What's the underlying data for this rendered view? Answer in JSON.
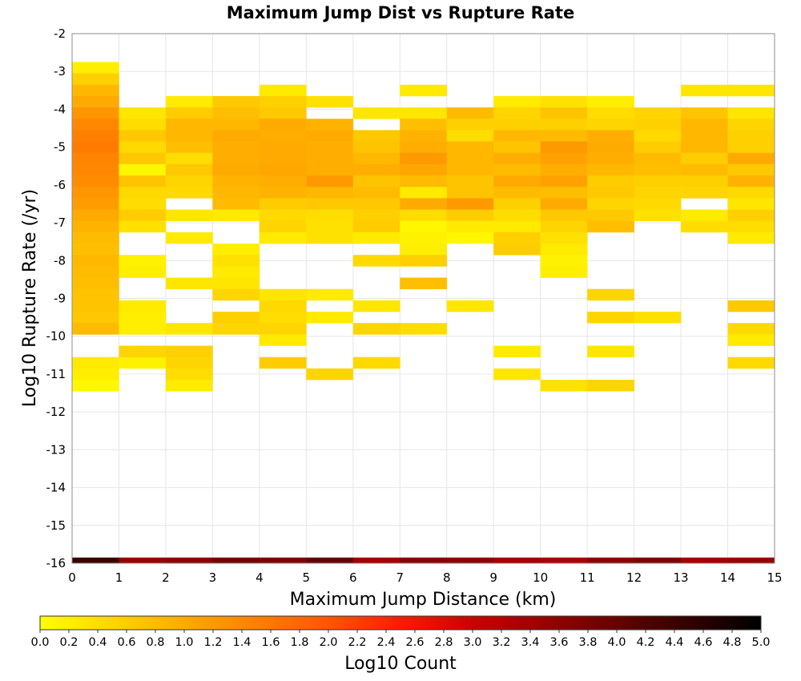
{
  "chart_data": {
    "type": "heatmap",
    "title": "Maximum Jump Dist vs Rupture Rate",
    "xlabel": "Maximum Jump Distance (km)",
    "ylabel": "Log10 Rupture Rate (/yr)",
    "xlim": [
      0,
      15
    ],
    "ylim": [
      -16,
      -2
    ],
    "x_ticks": [
      "0",
      "1",
      "2",
      "3",
      "4",
      "5",
      "6",
      "7",
      "8",
      "9",
      "10",
      "11",
      "12",
      "13",
      "14",
      "15"
    ],
    "y_ticks": [
      "-2",
      "-3",
      "-4",
      "-5",
      "-6",
      "-7",
      "-8",
      "-9",
      "-10",
      "-11",
      "-12",
      "-13",
      "-14",
      "-15",
      "-16"
    ],
    "grid": true,
    "bin_width_x": 1,
    "bin_height_y": 0.3,
    "colorbar": {
      "label": "Log10 Count",
      "range": [
        0,
        5
      ],
      "ticks": [
        "0.0",
        "0.2",
        "0.4",
        "0.6",
        "0.8",
        "1.0",
        "1.2",
        "1.4",
        "1.6",
        "1.8",
        "2.0",
        "2.2",
        "2.4",
        "2.6",
        "2.8",
        "3.0",
        "3.2",
        "3.4",
        "3.6",
        "3.8",
        "4.0",
        "4.2",
        "4.4",
        "4.6",
        "4.8",
        "5.0"
      ],
      "colors": [
        "#ffff00",
        "#ffaa00",
        "#ff5500",
        "#ff0000",
        "#aa0000",
        "#000000"
      ]
    },
    "columns": [
      {
        "x": 0,
        "bins": [
          [
            -2.9,
            0.2
          ],
          [
            -3.2,
            0.55
          ],
          [
            -3.5,
            0.85
          ],
          [
            -3.8,
            1.0
          ],
          [
            -4.1,
            1.25
          ],
          [
            -4.4,
            1.4
          ],
          [
            -4.7,
            1.5
          ],
          [
            -5.0,
            1.55
          ],
          [
            -5.3,
            1.45
          ],
          [
            -5.6,
            1.4
          ],
          [
            -5.9,
            1.35
          ],
          [
            -6.2,
            1.25
          ],
          [
            -6.5,
            1.15
          ],
          [
            -6.8,
            1.0
          ],
          [
            -7.1,
            0.9
          ],
          [
            -7.4,
            0.8
          ],
          [
            -7.7,
            0.75
          ],
          [
            -8.0,
            0.85
          ],
          [
            -8.3,
            0.8
          ],
          [
            -8.6,
            0.75
          ],
          [
            -8.9,
            0.7
          ],
          [
            -9.2,
            0.7
          ],
          [
            -9.5,
            0.65
          ],
          [
            -9.8,
            0.8
          ],
          [
            -10.7,
            0.25
          ],
          [
            -11.0,
            0.2
          ],
          [
            -11.3,
            0.1
          ]
        ]
      },
      {
        "x": 1,
        "bins": [
          [
            -4.1,
            0.3
          ],
          [
            -4.4,
            0.4
          ],
          [
            -4.7,
            0.65
          ],
          [
            -5.0,
            0.45
          ],
          [
            -5.3,
            0.65
          ],
          [
            -5.6,
            0.1
          ],
          [
            -5.9,
            0.7
          ],
          [
            -6.2,
            0.45
          ],
          [
            -6.5,
            0.4
          ],
          [
            -6.8,
            0.6
          ],
          [
            -7.1,
            0.35
          ],
          [
            -8.0,
            0.15
          ],
          [
            -8.3,
            0.2
          ],
          [
            -9.2,
            0.25
          ],
          [
            -9.5,
            0.2
          ],
          [
            -9.8,
            0.2
          ],
          [
            -10.4,
            0.55
          ],
          [
            -10.7,
            0.15
          ],
          [
            -10.4,
            0.5
          ]
        ]
      },
      {
        "x": 2,
        "bins": [
          [
            -3.8,
            0.25
          ],
          [
            -4.1,
            0.6
          ],
          [
            -4.4,
            0.85
          ],
          [
            -4.7,
            0.85
          ],
          [
            -5.0,
            0.75
          ],
          [
            -5.3,
            0.4
          ],
          [
            -5.6,
            0.65
          ],
          [
            -5.9,
            0.5
          ],
          [
            -6.2,
            0.45
          ],
          [
            -6.8,
            0.3
          ],
          [
            -7.4,
            0.25
          ],
          [
            -8.6,
            0.3
          ],
          [
            -9.8,
            0.3
          ],
          [
            -10.4,
            0.55
          ],
          [
            -10.7,
            0.5
          ],
          [
            -11.0,
            0.4
          ],
          [
            -11.3,
            0.25
          ]
        ]
      },
      {
        "x": 3,
        "bins": [
          [
            -3.8,
            0.65
          ],
          [
            -4.1,
            0.75
          ],
          [
            -4.4,
            0.85
          ],
          [
            -4.7,
            1.0
          ],
          [
            -5.0,
            0.95
          ],
          [
            -5.3,
            0.95
          ],
          [
            -5.6,
            1.0
          ],
          [
            -5.9,
            0.9
          ],
          [
            -6.2,
            0.85
          ],
          [
            -6.5,
            0.8
          ],
          [
            -6.8,
            0.25
          ],
          [
            -7.7,
            0.2
          ],
          [
            -8.0,
            0.35
          ],
          [
            -8.3,
            0.25
          ],
          [
            -8.6,
            0.3
          ],
          [
            -8.9,
            0.5
          ],
          [
            -9.5,
            0.55
          ],
          [
            -9.8,
            0.5
          ]
        ]
      },
      {
        "x": 4,
        "bins": [
          [
            -3.5,
            0.25
          ],
          [
            -3.8,
            0.55
          ],
          [
            -4.1,
            0.65
          ],
          [
            -4.4,
            1.0
          ],
          [
            -4.7,
            0.95
          ],
          [
            -5.0,
            1.0
          ],
          [
            -5.3,
            1.0
          ],
          [
            -5.6,
            1.05
          ],
          [
            -5.9,
            0.95
          ],
          [
            -6.2,
            0.9
          ],
          [
            -6.5,
            0.6
          ],
          [
            -6.8,
            0.45
          ],
          [
            -7.1,
            0.5
          ],
          [
            -7.4,
            0.25
          ],
          [
            -8.9,
            0.3
          ],
          [
            -9.2,
            0.45
          ],
          [
            -9.5,
            0.4
          ],
          [
            -9.8,
            0.5
          ],
          [
            -10.1,
            0.25
          ],
          [
            -10.7,
            0.6
          ]
        ]
      },
      {
        "x": 5,
        "bins": [
          [
            -3.8,
            0.35
          ],
          [
            -4.4,
            0.9
          ],
          [
            -4.7,
            1.0
          ],
          [
            -5.0,
            0.95
          ],
          [
            -5.3,
            0.95
          ],
          [
            -5.6,
            0.95
          ],
          [
            -5.9,
            1.2
          ],
          [
            -6.2,
            0.85
          ],
          [
            -6.5,
            0.65
          ],
          [
            -6.8,
            0.4
          ],
          [
            -7.1,
            0.35
          ],
          [
            -7.4,
            0.35
          ],
          [
            -8.9,
            0.25
          ],
          [
            -9.5,
            0.25
          ],
          [
            -11.0,
            0.5
          ]
        ]
      },
      {
        "x": 6,
        "bins": [
          [
            -4.1,
            0.3
          ],
          [
            -4.7,
            0.65
          ],
          [
            -5.0,
            0.7
          ],
          [
            -5.3,
            0.85
          ],
          [
            -5.6,
            0.95
          ],
          [
            -5.9,
            0.7
          ],
          [
            -6.2,
            0.8
          ],
          [
            -6.5,
            0.65
          ],
          [
            -6.8,
            0.55
          ],
          [
            -7.1,
            0.6
          ],
          [
            -7.4,
            0.25
          ],
          [
            -8.0,
            0.45
          ],
          [
            -9.2,
            0.3
          ],
          [
            -9.8,
            0.5
          ],
          [
            -10.7,
            0.45
          ]
        ]
      },
      {
        "x": 7,
        "bins": [
          [
            -3.5,
            0.25
          ],
          [
            -4.1,
            0.3
          ],
          [
            -4.4,
            0.75
          ],
          [
            -4.7,
            0.9
          ],
          [
            -5.0,
            0.95
          ],
          [
            -5.3,
            1.2
          ],
          [
            -5.6,
            1.05
          ],
          [
            -5.9,
            0.8
          ],
          [
            -6.2,
            0.25
          ],
          [
            -6.5,
            1.0
          ],
          [
            -6.8,
            0.4
          ],
          [
            -7.1,
            0.1
          ],
          [
            -7.4,
            0.15
          ],
          [
            -7.7,
            0.2
          ],
          [
            -8.0,
            0.55
          ],
          [
            -8.6,
            0.75
          ],
          [
            -9.8,
            0.4
          ]
        ]
      },
      {
        "x": 8,
        "bins": [
          [
            -4.1,
            0.8
          ],
          [
            -4.4,
            0.55
          ],
          [
            -4.7,
            0.4
          ],
          [
            -5.0,
            0.85
          ],
          [
            -5.3,
            0.85
          ],
          [
            -5.6,
            0.85
          ],
          [
            -5.9,
            0.7
          ],
          [
            -6.2,
            0.7
          ],
          [
            -6.5,
            1.2
          ],
          [
            -6.8,
            0.6
          ],
          [
            -7.1,
            0.25
          ],
          [
            -7.4,
            0.1
          ],
          [
            -9.2,
            0.3
          ]
        ]
      },
      {
        "x": 9,
        "bins": [
          [
            -3.8,
            0.25
          ],
          [
            -4.1,
            0.5
          ],
          [
            -4.4,
            0.55
          ],
          [
            -4.7,
            0.85
          ],
          [
            -5.0,
            0.7
          ],
          [
            -5.3,
            0.95
          ],
          [
            -5.6,
            0.8
          ],
          [
            -5.9,
            1.0
          ],
          [
            -6.2,
            0.8
          ],
          [
            -6.5,
            0.55
          ],
          [
            -6.8,
            0.4
          ],
          [
            -7.1,
            0.25
          ],
          [
            -7.4,
            0.55
          ],
          [
            -7.7,
            0.6
          ],
          [
            -10.4,
            0.25
          ],
          [
            -11.0,
            0.3
          ]
        ]
      },
      {
        "x": 10,
        "bins": [
          [
            -3.8,
            0.35
          ],
          [
            -4.1,
            0.7
          ],
          [
            -4.4,
            0.55
          ],
          [
            -4.7,
            0.8
          ],
          [
            -5.0,
            1.2
          ],
          [
            -5.3,
            1.1
          ],
          [
            -5.6,
            0.95
          ],
          [
            -5.9,
            1.1
          ],
          [
            -6.2,
            0.75
          ],
          [
            -6.5,
            1.0
          ],
          [
            -6.8,
            0.65
          ],
          [
            -7.1,
            0.5
          ],
          [
            -7.4,
            0.35
          ],
          [
            -7.7,
            0.25
          ],
          [
            -8.0,
            0.15
          ],
          [
            -8.3,
            0.2
          ],
          [
            -11.3,
            0.35
          ]
        ]
      },
      {
        "x": 11,
        "bins": [
          [
            -3.8,
            0.2
          ],
          [
            -4.1,
            0.4
          ],
          [
            -4.4,
            0.5
          ],
          [
            -4.7,
            0.95
          ],
          [
            -5.0,
            1.0
          ],
          [
            -5.3,
            0.95
          ],
          [
            -5.6,
            0.85
          ],
          [
            -5.9,
            0.6
          ],
          [
            -6.2,
            0.65
          ],
          [
            -6.5,
            0.5
          ],
          [
            -6.8,
            0.65
          ],
          [
            -7.1,
            0.75
          ],
          [
            -8.9,
            0.5
          ],
          [
            -9.5,
            0.5
          ],
          [
            -10.4,
            0.3
          ],
          [
            -11.3,
            0.5
          ]
        ]
      },
      {
        "x": 12,
        "bins": [
          [
            -4.1,
            0.5
          ],
          [
            -4.4,
            0.55
          ],
          [
            -4.7,
            0.45
          ],
          [
            -5.0,
            0.6
          ],
          [
            -5.3,
            0.8
          ],
          [
            -5.6,
            0.75
          ],
          [
            -5.9,
            0.55
          ],
          [
            -6.2,
            0.5
          ],
          [
            -6.5,
            0.45
          ],
          [
            -6.8,
            0.35
          ],
          [
            -9.5,
            0.35
          ]
        ]
      },
      {
        "x": 13,
        "bins": [
          [
            -3.5,
            0.3
          ],
          [
            -4.1,
            0.7
          ],
          [
            -4.4,
            0.85
          ],
          [
            -4.7,
            0.85
          ],
          [
            -5.0,
            0.85
          ],
          [
            -5.3,
            0.6
          ],
          [
            -5.6,
            0.8
          ],
          [
            -5.9,
            0.55
          ],
          [
            -6.2,
            0.5
          ],
          [
            -6.8,
            0.25
          ],
          [
            -7.1,
            0.4
          ]
        ]
      },
      {
        "x": 14,
        "bins": [
          [
            -3.5,
            0.3
          ],
          [
            -4.1,
            0.3
          ],
          [
            -4.4,
            0.5
          ],
          [
            -4.7,
            0.55
          ],
          [
            -5.0,
            0.55
          ],
          [
            -5.3,
            1.0
          ],
          [
            -5.6,
            0.65
          ],
          [
            -5.9,
            0.9
          ],
          [
            -6.2,
            0.45
          ],
          [
            -6.5,
            0.3
          ],
          [
            -6.8,
            0.55
          ],
          [
            -7.1,
            0.4
          ],
          [
            -7.4,
            0.25
          ],
          [
            -9.2,
            0.65
          ],
          [
            -9.8,
            0.45
          ],
          [
            -10.1,
            0.25
          ],
          [
            -10.7,
            0.45
          ]
        ]
      }
    ],
    "bottom_row": {
      "y": -16,
      "values": [
        4.65,
        4.1,
        4.15,
        4.3,
        4.25,
        4.4,
        4.05,
        4.2,
        4.15,
        4.05,
        4.0,
        4.15,
        4.25,
        4.05,
        4.1
      ]
    }
  }
}
